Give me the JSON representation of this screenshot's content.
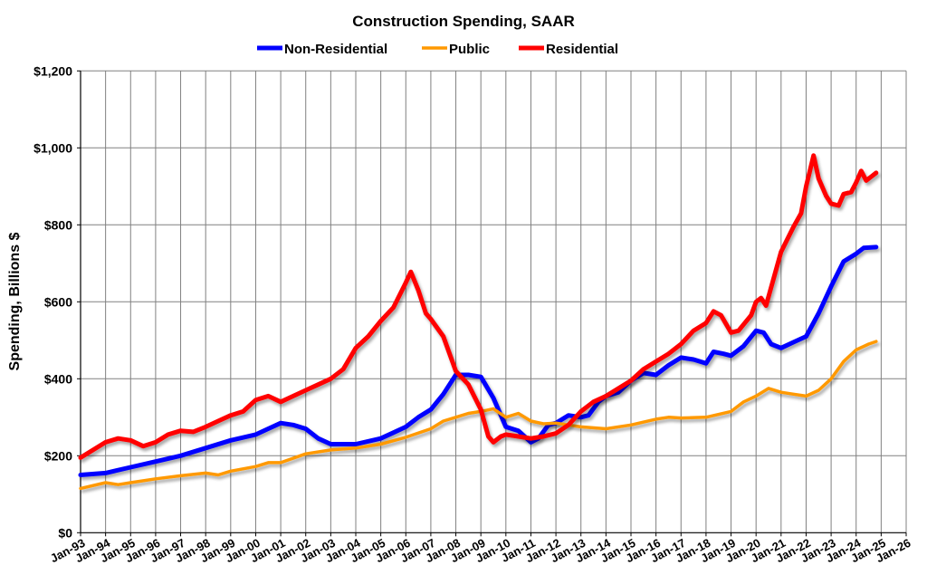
{
  "chart_data": {
    "type": "line",
    "title": "Construction Spending, SAAR",
    "xlabel": "",
    "ylabel": "Spending, Billions $",
    "ylim": [
      0,
      1200
    ],
    "yticks": [
      "$0",
      "$200",
      "$400",
      "$600",
      "$800",
      "$1,000",
      "$1,200"
    ],
    "ytick_values": [
      0,
      200,
      400,
      600,
      800,
      1000,
      1200
    ],
    "xlim": [
      1993,
      2026
    ],
    "xticks": [
      "Jan-93",
      "Jan-94",
      "Jan-95",
      "Jan-96",
      "Jan-97",
      "Jan-98",
      "Jan-99",
      "Jan-00",
      "Jan-01",
      "Jan-02",
      "Jan-03",
      "Jan-04",
      "Jan-05",
      "Jan-06",
      "Jan-07",
      "Jan-08",
      "Jan-09",
      "Jan-10",
      "Jan-11",
      "Jan-12",
      "Jan-13",
      "Jan-14",
      "Jan-15",
      "Jan-16",
      "Jan-17",
      "Jan-18",
      "Jan-19",
      "Jan-20",
      "Jan-21",
      "Jan-22",
      "Jan-23",
      "Jan-24",
      "Jan-25",
      "Jan-26"
    ],
    "grid": true,
    "legend_position": "top",
    "series": [
      {
        "name": "Non-Residential",
        "color": "#0000FF",
        "x": [
          1993,
          1994,
          1995,
          1996,
          1997,
          1998,
          1999,
          2000,
          2000.5,
          2001,
          2001.5,
          2002,
          2002.5,
          2003,
          2004,
          2005,
          2005.5,
          2006,
          2006.5,
          2007,
          2007.5,
          2008,
          2008.5,
          2009,
          2009.5,
          2010,
          2010.5,
          2011,
          2011.3,
          2011.7,
          2012,
          2012.5,
          2013,
          2013.3,
          2013.7,
          2014,
          2014.5,
          2015,
          2015.5,
          2016,
          2016.5,
          2017,
          2017.5,
          2018,
          2018.3,
          2018.7,
          2019,
          2019.5,
          2020,
          2020.3,
          2020.6,
          2021,
          2021.5,
          2022,
          2022.5,
          2023,
          2023.5,
          2024,
          2024.3,
          2024.8
        ],
        "y": [
          150,
          155,
          170,
          185,
          200,
          220,
          240,
          255,
          270,
          285,
          280,
          270,
          245,
          230,
          230,
          245,
          260,
          275,
          300,
          320,
          360,
          410,
          410,
          405,
          350,
          275,
          265,
          235,
          245,
          280,
          285,
          305,
          300,
          305,
          340,
          355,
          365,
          395,
          415,
          410,
          435,
          455,
          450,
          440,
          470,
          465,
          460,
          485,
          525,
          520,
          490,
          480,
          495,
          510,
          570,
          640,
          705,
          725,
          740,
          742
        ]
      },
      {
        "name": "Public",
        "color": "#FF9900",
        "x": [
          1993,
          1994,
          1994.5,
          1995,
          1996,
          1997,
          1998,
          1998.5,
          1999,
          2000,
          2000.5,
          2001,
          2002,
          2003,
          2004,
          2005,
          2006,
          2007,
          2007.5,
          2008,
          2008.5,
          2009,
          2009.5,
          2010,
          2010.5,
          2011,
          2011.5,
          2012,
          2012.5,
          2013,
          2014,
          2015,
          2016,
          2016.5,
          2017,
          2018,
          2019,
          2019.5,
          2020,
          2020.5,
          2021,
          2021.5,
          2022,
          2022.5,
          2023,
          2023.5,
          2024,
          2024.5,
          2024.8
        ],
        "y": [
          115,
          130,
          125,
          130,
          140,
          148,
          155,
          150,
          160,
          172,
          182,
          182,
          205,
          215,
          220,
          230,
          248,
          270,
          290,
          300,
          310,
          315,
          322,
          300,
          310,
          290,
          283,
          285,
          280,
          275,
          270,
          280,
          295,
          300,
          298,
          300,
          315,
          340,
          355,
          375,
          365,
          360,
          355,
          370,
          400,
          445,
          475,
          490,
          497
        ]
      },
      {
        "name": "Residential",
        "color": "#FF0000",
        "x": [
          1993,
          1994,
          1994.5,
          1995,
          1995.5,
          1996,
          1996.5,
          1997,
          1997.5,
          1998,
          1998.5,
          1999,
          1999.5,
          2000,
          2000.5,
          2001,
          2001.5,
          2002,
          2002.5,
          2003,
          2003.5,
          2004,
          2004.5,
          2005,
          2005.5,
          2006,
          2006.2,
          2006.5,
          2006.8,
          2007,
          2007.5,
          2008,
          2008.5,
          2009,
          2009.3,
          2009.5,
          2009.8,
          2010,
          2010.5,
          2011,
          2011.5,
          2012,
          2012.5,
          2013,
          2013.5,
          2014,
          2014.5,
          2015,
          2015.5,
          2016,
          2016.5,
          2017,
          2017.5,
          2018,
          2018.3,
          2018.6,
          2019,
          2019.3,
          2019.8,
          2020,
          2020.2,
          2020.4,
          2020.7,
          2021,
          2021.5,
          2021.8,
          2022,
          2022.3,
          2022.5,
          2022.8,
          2023,
          2023.3,
          2023.5,
          2023.8,
          2024,
          2024.2,
          2024.4,
          2024.6,
          2024.8
        ],
        "y": [
          195,
          235,
          245,
          240,
          225,
          235,
          255,
          265,
          262,
          275,
          290,
          305,
          315,
          345,
          355,
          340,
          355,
          370,
          385,
          400,
          425,
          480,
          510,
          550,
          585,
          650,
          678,
          630,
          570,
          555,
          510,
          420,
          385,
          320,
          250,
          235,
          250,
          255,
          250,
          245,
          250,
          258,
          280,
          315,
          340,
          355,
          375,
          395,
          425,
          445,
          465,
          490,
          525,
          545,
          575,
          565,
          520,
          525,
          565,
          600,
          610,
          590,
          660,
          730,
          795,
          830,
          900,
          980,
          920,
          875,
          855,
          850,
          880,
          885,
          910,
          940,
          915,
          925,
          935
        ]
      }
    ]
  }
}
